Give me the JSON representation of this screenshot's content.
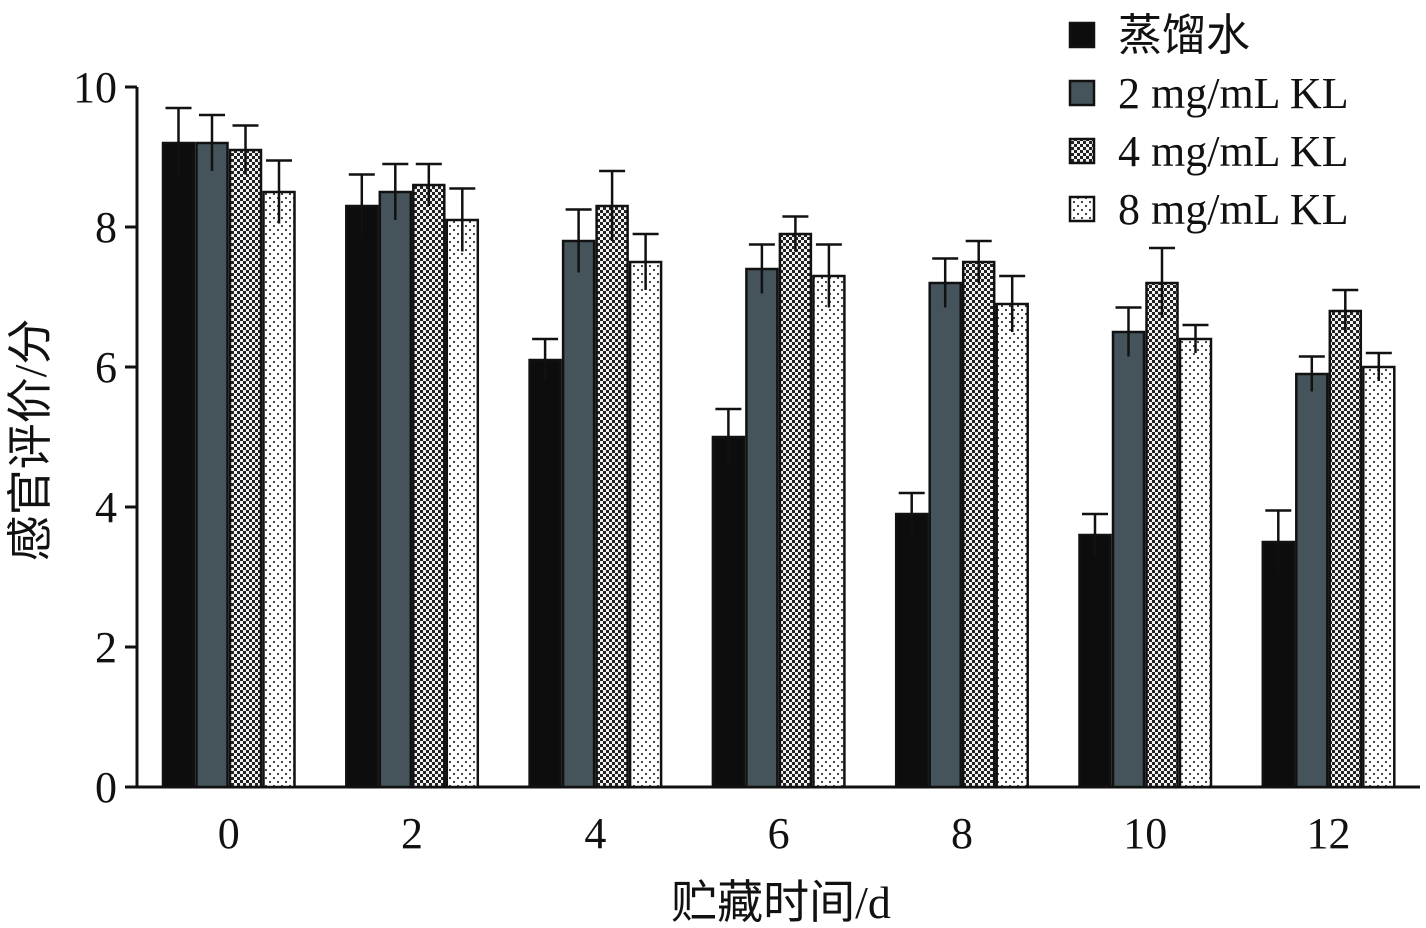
{
  "chart_data": {
    "type": "bar",
    "xlabel": "贮藏时间/d",
    "ylabel": "感官评价/分",
    "ylim": [
      0,
      10
    ],
    "yticks": [
      "0",
      "2",
      "4",
      "6",
      "8",
      "10"
    ],
    "categories": [
      "0",
      "2",
      "4",
      "6",
      "8",
      "10",
      "12"
    ],
    "series": [
      {
        "name": "蒸馏水",
        "fill": "solid",
        "color": "#0d0d0d",
        "values": [
          9.2,
          8.3,
          6.1,
          5.0,
          3.9,
          3.6,
          3.5
        ],
        "errors": [
          0.5,
          0.45,
          0.3,
          0.4,
          0.3,
          0.3,
          0.45
        ]
      },
      {
        "name": "2 mg/mL KL",
        "fill": "solid",
        "color": "#45545a",
        "values": [
          9.2,
          8.5,
          7.8,
          7.4,
          7.2,
          6.5,
          5.9
        ],
        "errors": [
          0.4,
          0.4,
          0.45,
          0.35,
          0.35,
          0.35,
          0.25
        ]
      },
      {
        "name": "4 mg/mL KL",
        "fill": "crosshatch",
        "color": "#2a2a2a",
        "values": [
          9.1,
          8.6,
          8.3,
          7.9,
          7.5,
          7.2,
          6.8
        ],
        "errors": [
          0.35,
          0.3,
          0.5,
          0.25,
          0.3,
          0.5,
          0.3
        ]
      },
      {
        "name": "8 mg/mL KL",
        "fill": "dotted",
        "color": "#ffffff",
        "values": [
          8.5,
          8.1,
          7.5,
          7.3,
          6.9,
          6.4,
          6.0
        ],
        "errors": [
          0.45,
          0.45,
          0.4,
          0.45,
          0.4,
          0.2,
          0.2
        ]
      }
    ],
    "legend_position": "top-right",
    "grid": false
  }
}
